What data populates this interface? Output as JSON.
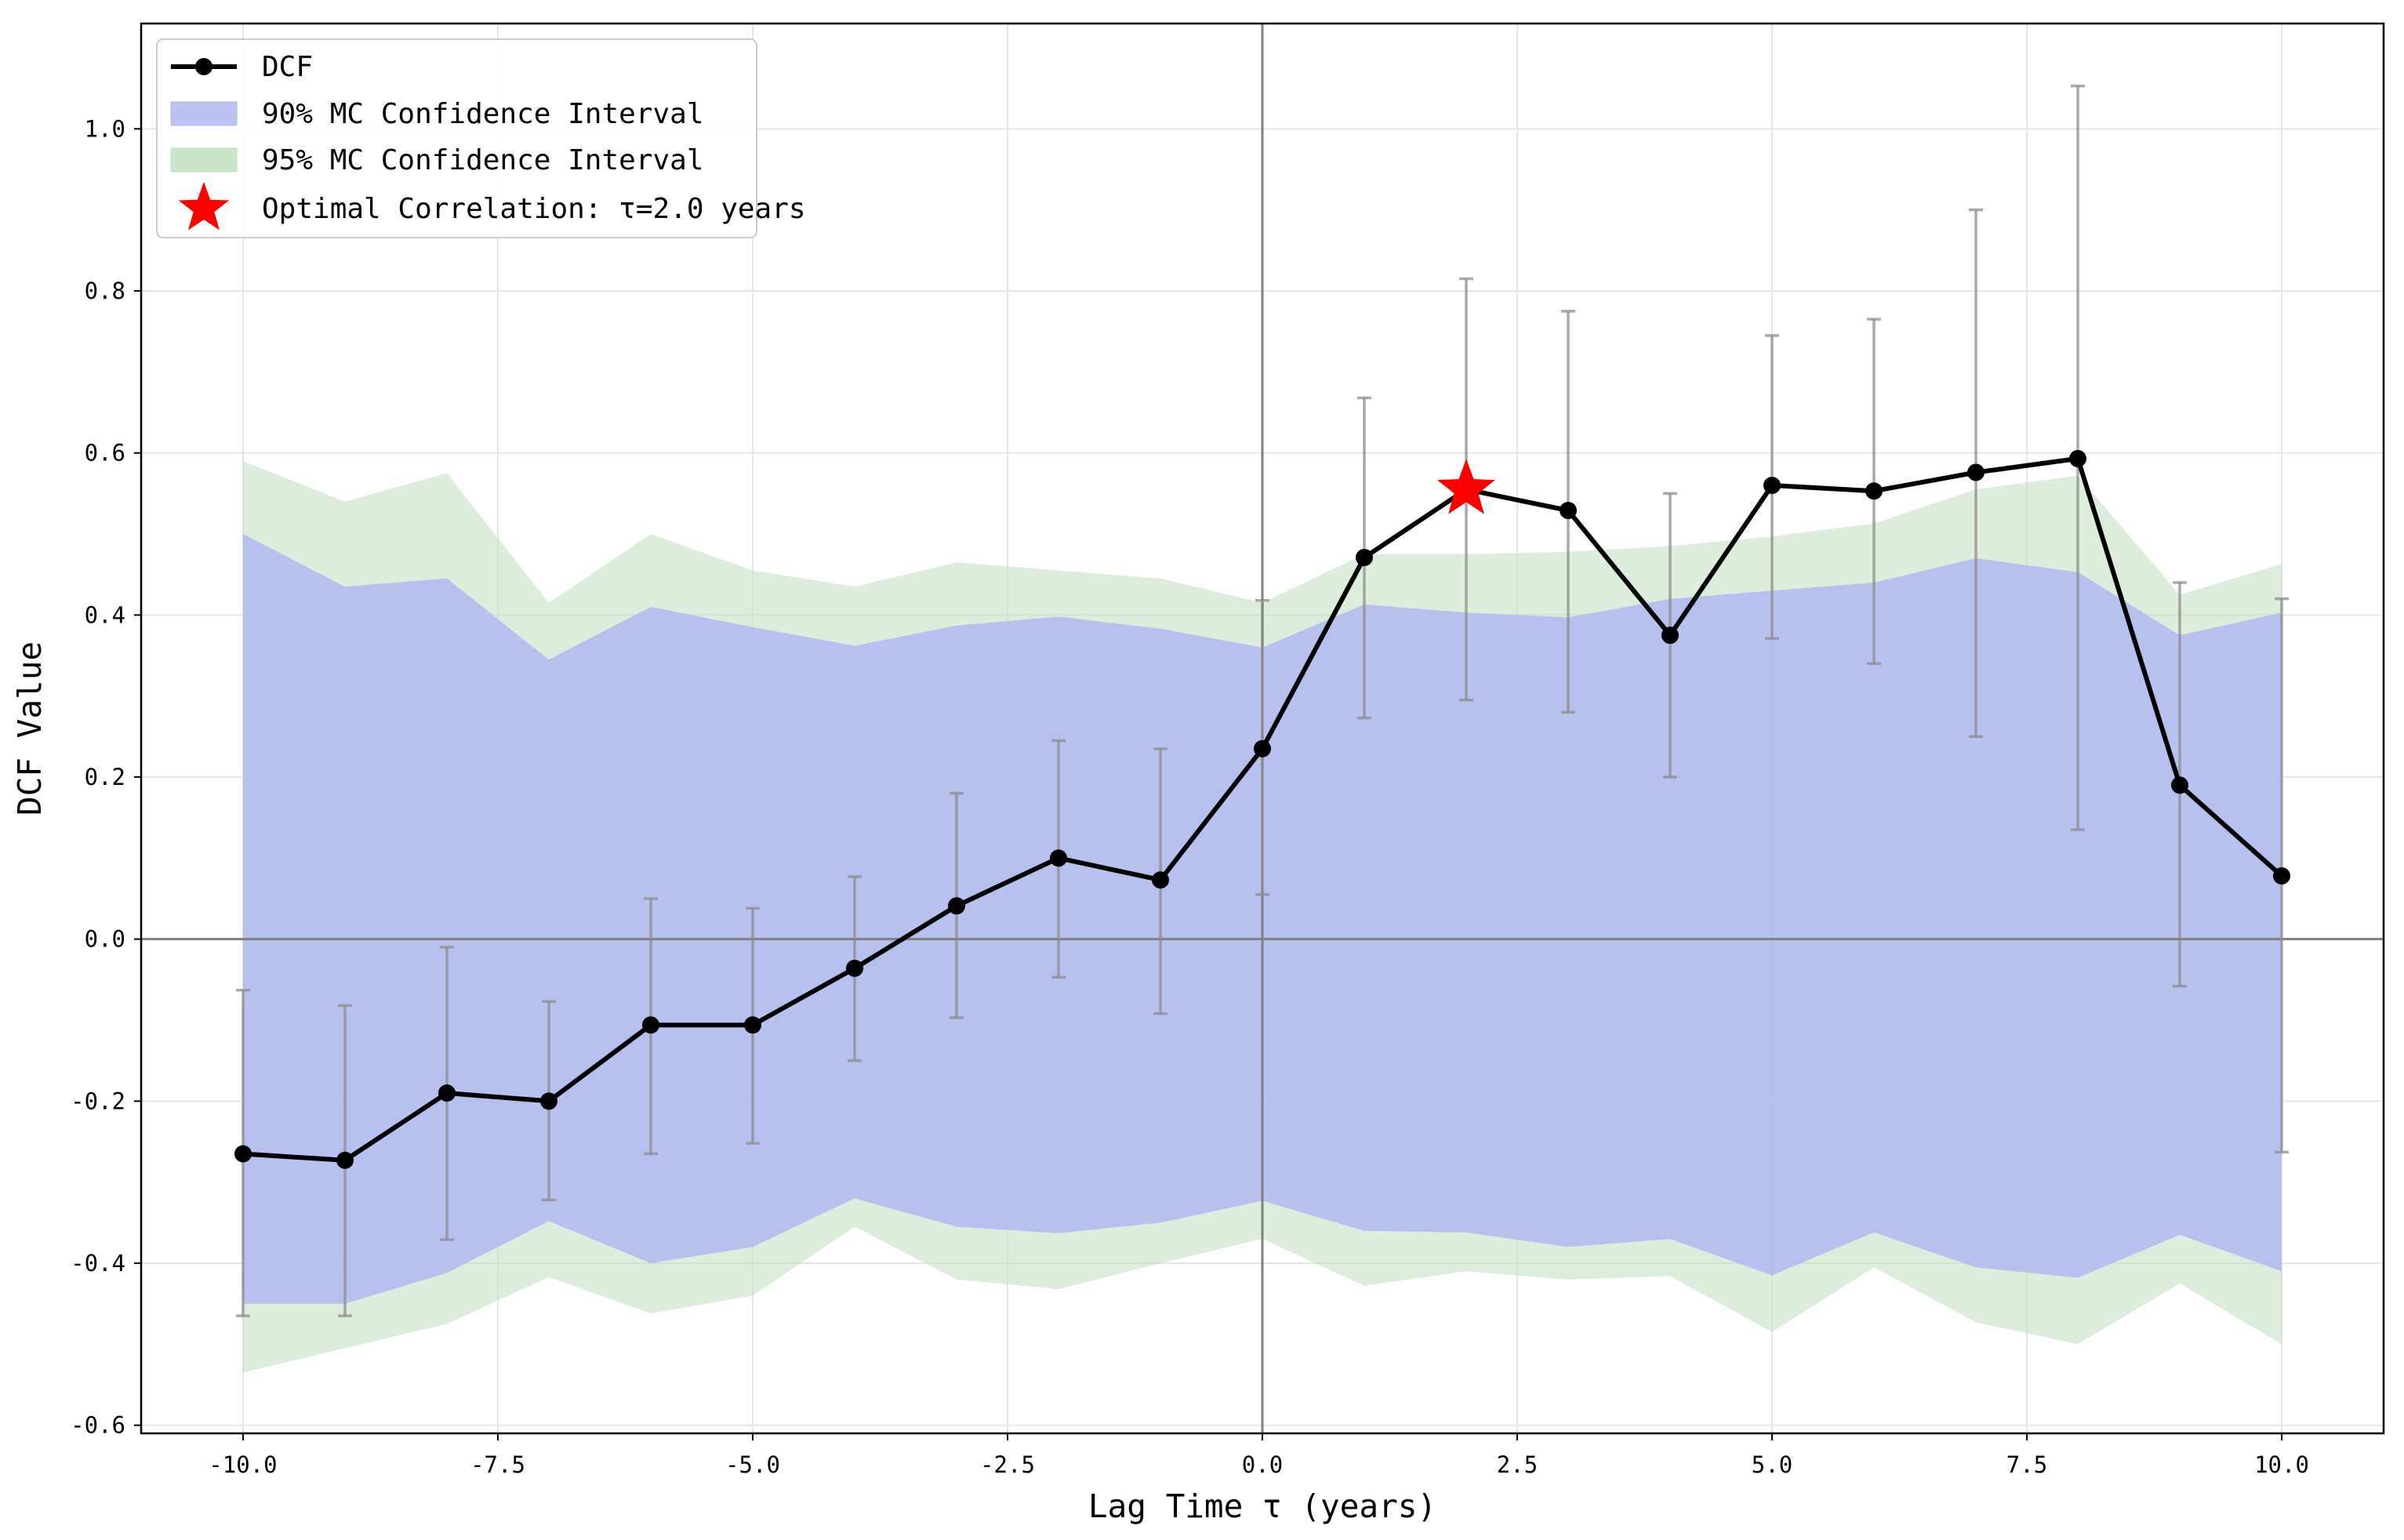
{
  "chart_data": {
    "type": "line",
    "xlabel": "Lag Time τ (years)",
    "ylabel": "DCF Value",
    "xlim": [
      -11,
      11
    ],
    "ylim": [
      -0.61,
      1.13
    ],
    "xticks": [
      -10,
      -7.5,
      -5,
      -2.5,
      0,
      2.5,
      5,
      7.5,
      10
    ],
    "xtick_labels": [
      "-10.0",
      "-7.5",
      "-5.0",
      "-2.5",
      "0.0",
      "2.5",
      "5.0",
      "7.5",
      "10.0"
    ],
    "yticks": [
      -0.6,
      -0.4,
      -0.2,
      0.0,
      0.2,
      0.4,
      0.6,
      0.8,
      1.0
    ],
    "ytick_labels": [
      "-0.6",
      "-0.4",
      "-0.2",
      "0.0",
      "0.2",
      "0.4",
      "0.6",
      "0.8",
      "1.0"
    ],
    "grid": true,
    "legend_position": "top-left",
    "x": [
      -10,
      -9,
      -8,
      -7,
      -6,
      -5,
      -4,
      -3,
      -2,
      -1,
      0,
      1,
      2,
      3,
      4,
      5,
      6,
      7,
      8,
      9,
      10
    ],
    "series": [
      {
        "name": "DCF",
        "color": "#000000",
        "values": [
          -0.265,
          -0.273,
          -0.19,
          -0.2,
          -0.106,
          -0.106,
          -0.036,
          0.041,
          0.1,
          0.073,
          0.235,
          0.471,
          0.555,
          0.529,
          0.375,
          0.56,
          0.553,
          0.576,
          0.593,
          0.19,
          0.078
        ],
        "err_low": [
          -0.465,
          -0.465,
          -0.371,
          -0.322,
          -0.265,
          -0.252,
          -0.15,
          -0.097,
          -0.047,
          -0.092,
          0.055,
          0.273,
          0.295,
          0.28,
          0.2,
          0.371,
          0.34,
          0.25,
          0.135,
          -0.058,
          -0.263
        ],
        "err_high": [
          -0.063,
          -0.082,
          -0.01,
          -0.077,
          0.05,
          0.038,
          0.077,
          0.18,
          0.245,
          0.235,
          0.418,
          0.668,
          0.815,
          0.775,
          0.55,
          0.745,
          0.765,
          0.9,
          1.053,
          0.44,
          0.42
        ]
      }
    ],
    "bands": [
      {
        "name": "95% MC Confidence Interval",
        "color": "#bfe0be",
        "upper": [
          0.59,
          0.54,
          0.575,
          0.415,
          0.5,
          0.455,
          0.435,
          0.465,
          0.455,
          0.445,
          0.415,
          0.475,
          0.475,
          0.478,
          0.485,
          0.497,
          0.513,
          0.555,
          0.572,
          0.425,
          0.463
        ],
        "lower": [
          -0.535,
          -0.505,
          -0.475,
          -0.417,
          -0.462,
          -0.44,
          -0.355,
          -0.42,
          -0.432,
          -0.4,
          -0.37,
          -0.428,
          -0.41,
          -0.42,
          -0.416,
          -0.485,
          -0.405,
          -0.473,
          -0.5,
          -0.425,
          -0.5
        ]
      },
      {
        "name": "90% MC Confidence Interval",
        "color": "#b0b8f0",
        "upper": [
          0.5,
          0.435,
          0.445,
          0.345,
          0.41,
          0.385,
          0.362,
          0.387,
          0.398,
          0.383,
          0.36,
          0.413,
          0.403,
          0.397,
          0.42,
          0.43,
          0.44,
          0.47,
          0.453,
          0.375,
          0.403
        ],
        "lower": [
          -0.45,
          -0.45,
          -0.412,
          -0.348,
          -0.4,
          -0.38,
          -0.32,
          -0.355,
          -0.363,
          -0.35,
          -0.323,
          -0.36,
          -0.362,
          -0.38,
          -0.37,
          -0.415,
          -0.362,
          -0.405,
          -0.418,
          -0.365,
          -0.41
        ]
      }
    ],
    "optimal_point": {
      "x": 2.0,
      "y": 0.555,
      "color": "#ff0000"
    },
    "legend": [
      {
        "label": "DCF",
        "kind": "line-marker",
        "color": "#000000"
      },
      {
        "label": "90% MC Confidence Interval",
        "kind": "patch",
        "color": "#b0b8f0"
      },
      {
        "label": "95% MC Confidence Interval",
        "kind": "patch",
        "color": "#bfe0be"
      },
      {
        "label": "Optimal Correlation: τ=2.0 years",
        "kind": "star",
        "color": "#ff0000"
      }
    ]
  }
}
